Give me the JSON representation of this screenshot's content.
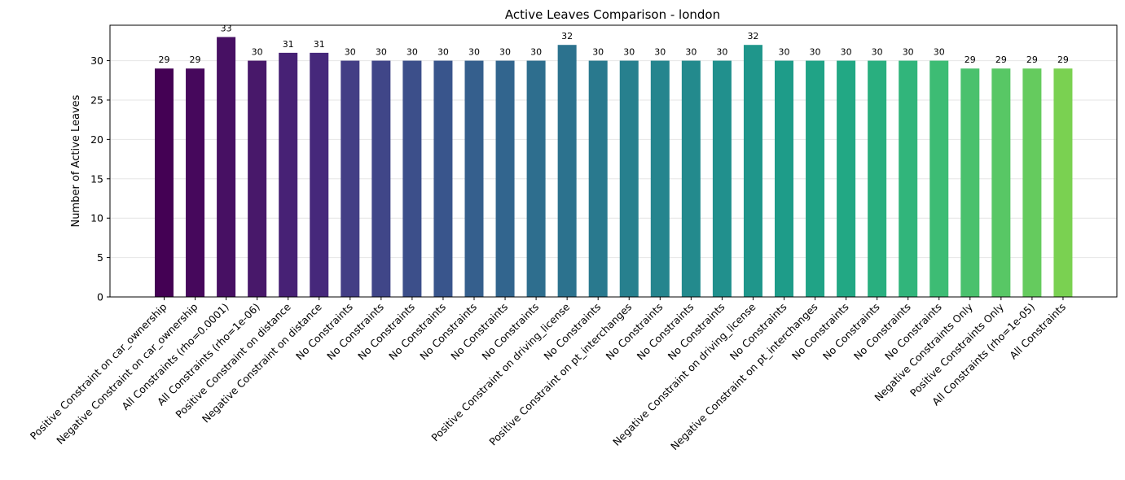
{
  "chart_data": {
    "type": "bar",
    "title": "Active Leaves Comparison - london",
    "xlabel": "",
    "ylabel": "Number of Active Leaves",
    "ylim": [
      0,
      34.5
    ],
    "yticks": [
      0,
      5,
      10,
      15,
      20,
      25,
      30
    ],
    "grid": "y",
    "categories": [
      "Positive Constraint on car_ownership",
      "Negative Constraint on car_ownership",
      "All Constraints (rho=0.0001)",
      "All Constraints (rho=1e-06)",
      "Positive Constraint on distance",
      "Negative Constraint on distance",
      "No Constraints",
      "No Constraints",
      "No Constraints",
      "No Constraints",
      "No Constraints",
      "No Constraints",
      "No Constraints",
      "Positive Constraint on driving_license",
      "No Constraints",
      "Positive Constraint on pt_interchanges",
      "No Constraints",
      "No Constraints",
      "No Constraints",
      "Negative Constraint on driving_license",
      "No Constraints",
      "Negative Constraint on pt_interchanges",
      "No Constraints",
      "No Constraints",
      "No Constraints",
      "No Constraints",
      "Negative Constraints Only",
      "Positive Constraints Only",
      "All Constraints (rho=1e-05)",
      "All Constraints"
    ],
    "values": [
      29,
      29,
      33,
      30,
      31,
      31,
      30,
      30,
      30,
      30,
      30,
      30,
      30,
      32,
      30,
      30,
      30,
      30,
      30,
      32,
      30,
      30,
      30,
      30,
      30,
      30,
      29,
      29,
      29,
      29
    ],
    "colors": [
      "#440154",
      "#46085c",
      "#471063",
      "#48186a",
      "#472175",
      "#46287b",
      "#433e85",
      "#404688",
      "#3c4f8a",
      "#39558c",
      "#355f8d",
      "#32658e",
      "#2e6e8e",
      "#2c728e",
      "#29798e",
      "#27808e",
      "#25858e",
      "#238a8d",
      "#21908d",
      "#1f968b",
      "#1e9c89",
      "#20a386",
      "#22a884",
      "#29af7f",
      "#31b57b",
      "#3dbc74",
      "#4ac16d",
      "#58c765",
      "#65cb5e",
      "#7ad151"
    ]
  }
}
